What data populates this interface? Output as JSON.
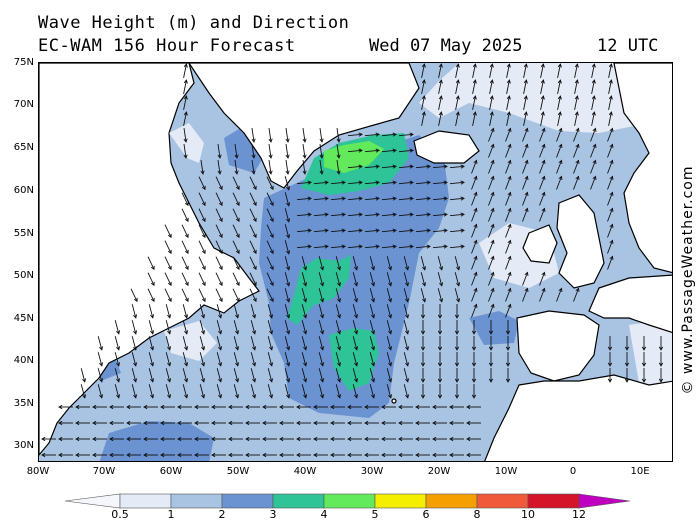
{
  "header": {
    "line1": "Wave Height (m) and Direction",
    "model": "EC-WAM 156 Hour Forecast",
    "date": "Wed 07 May 2025",
    "time": "12 UTC"
  },
  "credit": "© www.PassageWeather.com",
  "axes": {
    "lat_labels": [
      "75N",
      "70N",
      "65N",
      "60N",
      "55N",
      "50N",
      "45N",
      "40N",
      "35N",
      "30N"
    ],
    "lat_values": [
      75,
      70,
      65,
      60,
      55,
      50,
      45,
      40,
      35,
      30
    ],
    "lon_labels": [
      "80W",
      "70W",
      "60W",
      "50W",
      "40W",
      "30W",
      "20W",
      "10W",
      "0",
      "10E"
    ],
    "lon_values": [
      -80,
      -70,
      -60,
      -50,
      -40,
      -30,
      -20,
      -10,
      0,
      10
    ]
  },
  "legend": {
    "labels": [
      "0.5",
      "1",
      "2",
      "3",
      "4",
      "5",
      "6",
      "8",
      "10",
      "12"
    ],
    "colors": [
      "#e4ebf6",
      "#a9c3e3",
      "#6b93d1",
      "#2fc497",
      "#62ea5c",
      "#f4ee00",
      "#f5a000",
      "#f05a3a",
      "#d41428",
      "#c000c0"
    ]
  },
  "colors": {
    "land": "#ffffff",
    "coast": "#000000",
    "border": "#9a9a9a",
    "arrow": "#111111",
    "ice": "#e4ebf6"
  }
}
